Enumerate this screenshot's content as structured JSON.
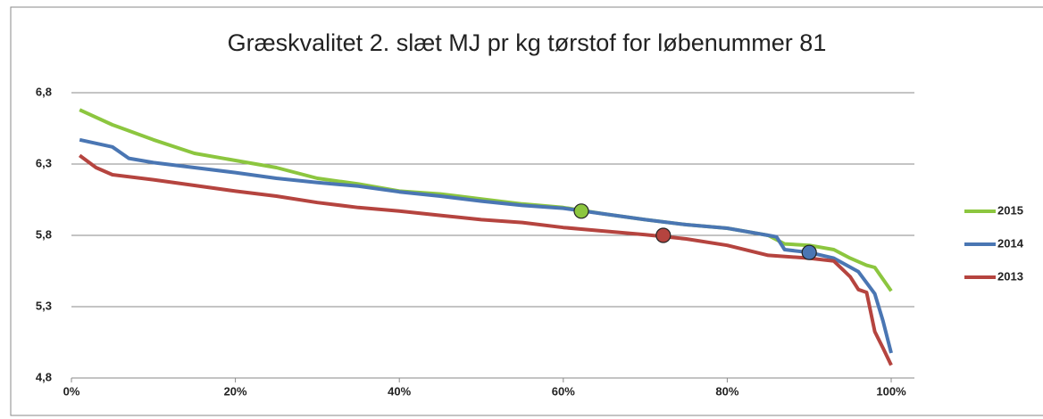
{
  "chart_data": {
    "type": "line",
    "title": "Græskvalitet 2. slæt MJ pr kg tørstof for løbenummer 81",
    "xlim": [
      0,
      100
    ],
    "xticks": [
      {
        "value": 0,
        "label": "0%"
      },
      {
        "value": 20,
        "label": "20%"
      },
      {
        "value": 40,
        "label": "40%"
      },
      {
        "value": 60,
        "label": "60%"
      },
      {
        "value": 80,
        "label": "80%"
      },
      {
        "value": 100,
        "label": "100%"
      }
    ],
    "ylim": [
      4.8,
      6.8
    ],
    "yticks": [
      {
        "value": 4.8,
        "label": "4,8"
      },
      {
        "value": 5.3,
        "label": "5,3"
      },
      {
        "value": 5.8,
        "label": "5,8"
      },
      {
        "value": 6.3,
        "label": "6,3"
      },
      {
        "value": 6.8,
        "label": "6,8"
      }
    ],
    "grid": true,
    "legend": "right",
    "series": [
      {
        "name": "2015",
        "color": "#8cc63f",
        "x": [
          1,
          5,
          10,
          15,
          20,
          25,
          30,
          35,
          40,
          45,
          50,
          55,
          60,
          65,
          70,
          75,
          80,
          85,
          87,
          90,
          93,
          95,
          97,
          98,
          100
        ],
        "values": [
          6.68,
          6.575,
          6.47,
          6.375,
          6.325,
          6.275,
          6.2,
          6.16,
          6.11,
          6.09,
          6.055,
          6.02,
          5.995,
          5.95,
          5.91,
          5.875,
          5.85,
          5.8,
          5.74,
          5.73,
          5.7,
          5.64,
          5.59,
          5.575,
          5.41
        ],
        "highlight": {
          "x": 62.2,
          "value": 5.97
        }
      },
      {
        "name": "2014",
        "color": "#4a76b3",
        "x": [
          1,
          5,
          7,
          10,
          15,
          20,
          25,
          30,
          35,
          40,
          45,
          50,
          55,
          60,
          65,
          70,
          75,
          80,
          85,
          86,
          87,
          90,
          93,
          96,
          98,
          99,
          100
        ],
        "values": [
          6.47,
          6.42,
          6.34,
          6.31,
          6.275,
          6.24,
          6.2,
          6.17,
          6.145,
          6.105,
          6.075,
          6.04,
          6.01,
          5.99,
          5.95,
          5.91,
          5.875,
          5.85,
          5.8,
          5.79,
          5.7,
          5.68,
          5.64,
          5.545,
          5.39,
          5.2,
          4.975
        ],
        "highlight": {
          "x": 90,
          "value": 5.68
        }
      },
      {
        "name": "2013",
        "color": "#b5443f",
        "x": [
          1,
          3,
          5,
          10,
          15,
          20,
          25,
          30,
          35,
          40,
          45,
          50,
          55,
          60,
          65,
          70,
          75,
          80,
          85,
          90,
          93,
          95,
          96,
          97,
          98,
          99,
          100
        ],
        "values": [
          6.36,
          6.275,
          6.225,
          6.19,
          6.15,
          6.11,
          6.075,
          6.03,
          5.995,
          5.97,
          5.94,
          5.91,
          5.89,
          5.855,
          5.83,
          5.805,
          5.775,
          5.73,
          5.66,
          5.64,
          5.62,
          5.51,
          5.42,
          5.4,
          5.125,
          5.01,
          4.89
        ],
        "highlight": {
          "x": 72.2,
          "value": 5.8
        }
      }
    ]
  }
}
